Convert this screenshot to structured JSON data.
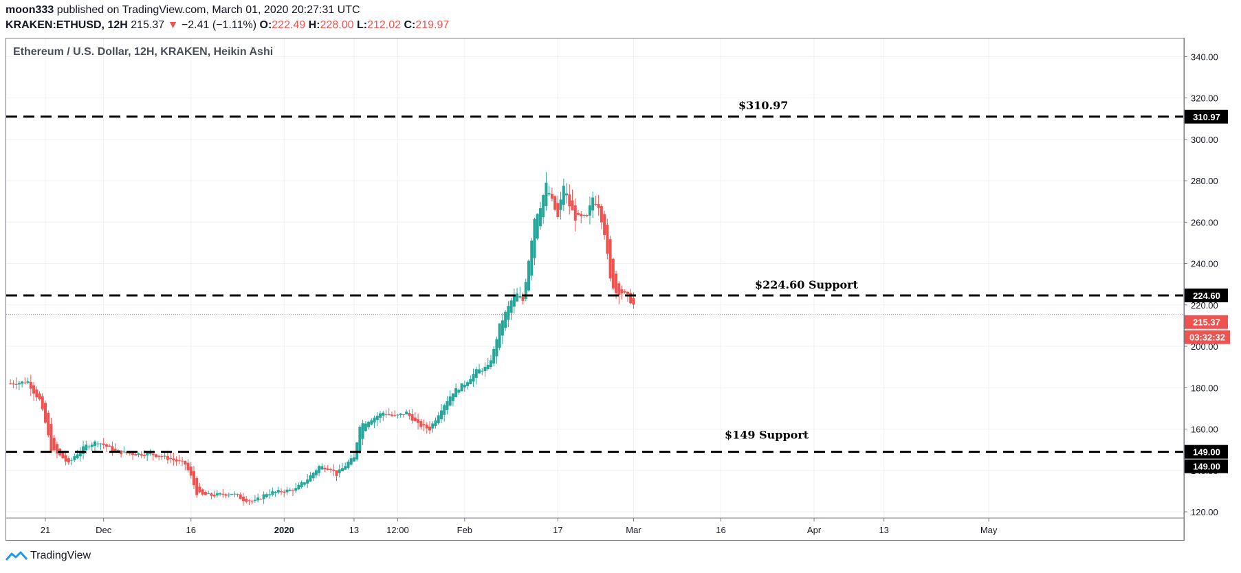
{
  "header": {
    "author": "moon333",
    "published_text": "published on TradingView.com, March 01, 2020 20:27:31 UTC",
    "symbol": "KRAKEN:ETHUSD, 12H",
    "last": "215.37",
    "change_arrow": "▼",
    "change": "−2.41 (−1.11%)",
    "o_label": "O:",
    "o_value": "222.49",
    "h_label": "H:",
    "h_value": "228.00",
    "l_label": "L:",
    "l_value": "212.02",
    "c_label": "C:",
    "c_value": "219.97"
  },
  "footer": {
    "brand": "TradingView"
  },
  "chart_data": {
    "type": "candlestick",
    "style": "Heikin Ashi",
    "title": "Ethereum / U.S. Dollar, 12H, KRAKEN, Heikin Ashi",
    "interval": "12H",
    "ylim": [
      115,
      345
    ],
    "y_ticks": [
      "340.00",
      "320.00",
      "300.00",
      "280.00",
      "260.00",
      "240.00",
      "220.00",
      "200.00",
      "180.00",
      "160.00",
      "140.00",
      "120.00"
    ],
    "x_ticks": [
      "21",
      "Dec",
      "16",
      "2020",
      "13",
      "12:00",
      "Feb",
      "17",
      "Mar",
      "16",
      "Apr",
      "13",
      "May"
    ],
    "x_tick_dates": [
      "2019-11-21",
      "2019-12-01",
      "2019-12-16",
      "2020-01-01",
      "2020-01-13",
      "2020-01-20T12:00",
      "2020-02-01",
      "2020-02-17",
      "2020-03-01",
      "2020-03-16",
      "2020-04-01",
      "2020-04-13",
      "2020-05-01"
    ],
    "levels": [
      {
        "value": 310.97,
        "annotation": "$310.97",
        "label": "310.97"
      },
      {
        "value": 224.6,
        "annotation": "$224.60 Support",
        "label": "224.60"
      },
      {
        "value": 149.0,
        "annotation": "$149 Support",
        "label": "149.00"
      }
    ],
    "last_price": {
      "value": 215.37,
      "label": "215.37",
      "countdown": "03:32:32"
    },
    "up_color": "#26a69a",
    "down_color": "#ef5350",
    "closes": [
      {
        "date": "2019-11-15",
        "close": 182
      },
      {
        "date": "2019-11-18",
        "close": 183
      },
      {
        "date": "2019-11-19",
        "close": 178
      },
      {
        "date": "2019-11-20",
        "close": 174
      },
      {
        "date": "2019-11-21",
        "close": 163
      },
      {
        "date": "2019-11-22",
        "close": 150
      },
      {
        "date": "2019-11-24",
        "close": 146
      },
      {
        "date": "2019-11-25",
        "close": 143
      },
      {
        "date": "2019-11-26",
        "close": 147
      },
      {
        "date": "2019-11-28",
        "close": 152
      },
      {
        "date": "2019-11-30",
        "close": 154
      },
      {
        "date": "2019-12-03",
        "close": 149
      },
      {
        "date": "2019-12-06",
        "close": 148
      },
      {
        "date": "2019-12-09",
        "close": 148
      },
      {
        "date": "2019-12-12",
        "close": 146
      },
      {
        "date": "2019-12-15",
        "close": 143
      },
      {
        "date": "2019-12-16",
        "close": 137
      },
      {
        "date": "2019-12-17",
        "close": 129
      },
      {
        "date": "2019-12-18",
        "close": 128
      },
      {
        "date": "2019-12-20",
        "close": 128
      },
      {
        "date": "2019-12-23",
        "close": 129
      },
      {
        "date": "2019-12-25",
        "close": 126
      },
      {
        "date": "2019-12-27",
        "close": 125
      },
      {
        "date": "2019-12-29",
        "close": 129
      },
      {
        "date": "2020-01-01",
        "close": 130
      },
      {
        "date": "2020-01-03",
        "close": 131
      },
      {
        "date": "2020-01-05",
        "close": 136
      },
      {
        "date": "2020-01-07",
        "close": 142
      },
      {
        "date": "2020-01-09",
        "close": 141
      },
      {
        "date": "2020-01-10",
        "close": 138
      },
      {
        "date": "2020-01-12",
        "close": 144
      },
      {
        "date": "2020-01-13",
        "close": 146
      },
      {
        "date": "2020-01-14",
        "close": 162
      },
      {
        "date": "2020-01-16",
        "close": 165
      },
      {
        "date": "2020-01-18",
        "close": 168
      },
      {
        "date": "2020-01-20",
        "close": 166
      },
      {
        "date": "2020-01-22",
        "close": 168
      },
      {
        "date": "2020-01-24",
        "close": 162
      },
      {
        "date": "2020-01-26",
        "close": 160
      },
      {
        "date": "2020-01-28",
        "close": 170
      },
      {
        "date": "2020-01-30",
        "close": 178
      },
      {
        "date": "2020-02-01",
        "close": 182
      },
      {
        "date": "2020-02-03",
        "close": 188
      },
      {
        "date": "2020-02-05",
        "close": 190
      },
      {
        "date": "2020-02-06",
        "close": 198
      },
      {
        "date": "2020-02-07",
        "close": 210
      },
      {
        "date": "2020-02-09",
        "close": 222
      },
      {
        "date": "2020-02-10",
        "close": 225
      },
      {
        "date": "2020-02-11",
        "close": 222
      },
      {
        "date": "2020-02-12",
        "close": 242
      },
      {
        "date": "2020-02-13",
        "close": 262
      },
      {
        "date": "2020-02-14",
        "close": 268
      },
      {
        "date": "2020-02-15",
        "close": 278
      },
      {
        "date": "2020-02-16",
        "close": 270
      },
      {
        "date": "2020-02-17",
        "close": 262
      },
      {
        "date": "2020-02-18",
        "close": 278
      },
      {
        "date": "2020-02-19",
        "close": 268
      },
      {
        "date": "2020-02-20",
        "close": 262
      },
      {
        "date": "2020-02-21",
        "close": 262
      },
      {
        "date": "2020-02-22",
        "close": 262
      },
      {
        "date": "2020-02-23",
        "close": 272
      },
      {
        "date": "2020-02-24",
        "close": 268
      },
      {
        "date": "2020-02-25",
        "close": 255
      },
      {
        "date": "2020-02-26",
        "close": 232
      },
      {
        "date": "2020-02-27",
        "close": 226
      },
      {
        "date": "2020-02-28",
        "close": 226
      },
      {
        "date": "2020-02-29",
        "close": 224
      },
      {
        "date": "2020-03-01",
        "close": 219.97
      }
    ]
  }
}
